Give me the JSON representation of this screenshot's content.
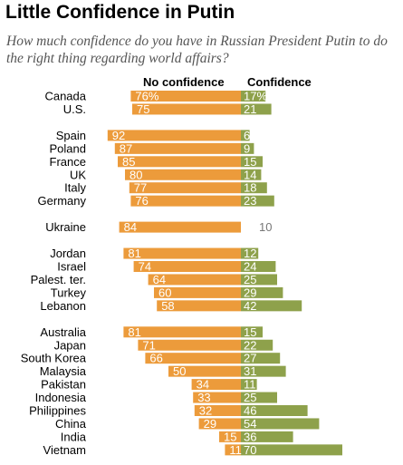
{
  "title": "Little Confidence in Putin",
  "subtitle": "How much confidence do you have in Russian President Putin to do the right thing regarding world affairs?",
  "colors": {
    "no_confidence": "#ec9b3b",
    "confidence": "#8ea14b"
  },
  "chart_data": {
    "type": "bar",
    "orientation": "diverging-horizontal",
    "series": [
      {
        "name": "No confidence",
        "values": [
          76,
          75,
          92,
          87,
          85,
          80,
          77,
          76,
          84,
          81,
          74,
          64,
          60,
          58,
          81,
          71,
          66,
          50,
          34,
          33,
          32,
          29,
          15,
          11
        ],
        "labels": [
          "76%",
          "75",
          "92",
          "87",
          "85",
          "80",
          "77",
          "76",
          "84",
          "81",
          "74",
          "64",
          "60",
          "58",
          "81",
          "71",
          "66",
          "50",
          "34",
          "33",
          "32",
          "29",
          "15",
          "11"
        ]
      },
      {
        "name": "Confidence",
        "values": [
          17,
          21,
          6,
          9,
          15,
          14,
          18,
          23,
          10,
          12,
          24,
          25,
          29,
          42,
          15,
          22,
          27,
          31,
          11,
          25,
          46,
          54,
          36,
          70
        ],
        "labels": [
          "17%",
          "21",
          "6",
          "9",
          "15",
          "14",
          "18",
          "23",
          "10",
          "12",
          "24",
          "25",
          "29",
          "42",
          "15",
          "22",
          "27",
          "31",
          "11",
          "25",
          "46",
          "54",
          "36",
          "70"
        ]
      }
    ],
    "groups": [
      [
        "Canada",
        "U.S."
      ],
      [
        "Spain",
        "Poland",
        "France",
        "UK",
        "Italy",
        "Germany"
      ],
      [
        "Ukraine"
      ],
      [
        "Jordan",
        "Israel",
        "Palest. ter.",
        "Turkey",
        "Lebanon"
      ],
      [
        "Australia",
        "Japan",
        "South Korea",
        "Malaysia",
        "Pakistan",
        "Indonesia",
        "Philippines",
        "China",
        "India",
        "Vietnam"
      ]
    ],
    "categories": [
      "Canada",
      "U.S.",
      "Spain",
      "Poland",
      "France",
      "UK",
      "Italy",
      "Germany",
      "Ukraine",
      "Jordan",
      "Israel",
      "Palest. ter.",
      "Turkey",
      "Lebanon",
      "Australia",
      "Japan",
      "South Korea",
      "Malaysia",
      "Pakistan",
      "Indonesia",
      "Philippines",
      "China",
      "India",
      "Vietnam"
    ],
    "highlight_category": "Ukraine"
  }
}
